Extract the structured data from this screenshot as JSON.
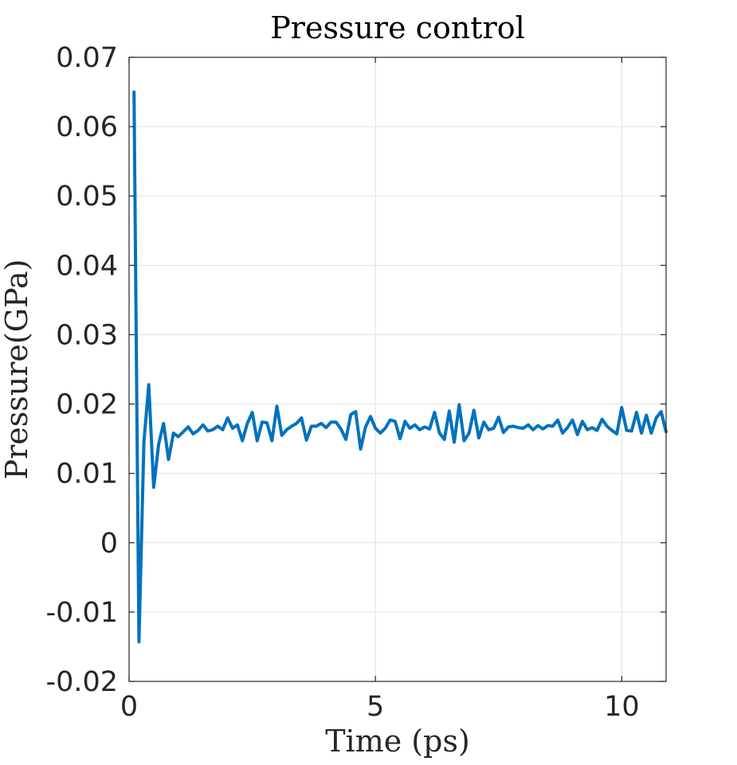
{
  "chart_data": {
    "type": "line",
    "title": "Pressure control",
    "xlabel": "Time (ps)",
    "ylabel": "Pressure(GPa)",
    "xlim": [
      0,
      10.9
    ],
    "ylim": [
      -0.02,
      0.07
    ],
    "xticks": [
      0,
      5,
      10
    ],
    "yticks": [
      -0.02,
      -0.01,
      0,
      0.01,
      0.02,
      0.03,
      0.04,
      0.05,
      0.06,
      0.07
    ],
    "xtick_labels": [
      "0",
      "5",
      "10"
    ],
    "ytick_labels": [
      "-0.02",
      "-0.01",
      "0",
      "0.01",
      "0.02",
      "0.03",
      "0.04",
      "0.05",
      "0.06",
      "0.07"
    ],
    "grid": true,
    "line_color": "#0072BD",
    "series": [
      {
        "x": [
          0.1,
          0.2,
          0.3,
          0.4,
          0.5,
          0.6,
          0.7,
          0.8,
          0.9,
          1.0,
          1.1,
          1.2,
          1.3,
          1.4,
          1.5,
          1.6,
          1.7,
          1.8,
          1.9,
          2.0,
          2.1,
          2.2,
          2.3,
          2.4,
          2.5,
          2.6,
          2.7,
          2.8,
          2.9,
          3.0,
          3.1,
          3.2,
          3.3,
          3.4,
          3.5,
          3.6,
          3.7,
          3.8,
          3.9,
          4.0,
          4.1,
          4.2,
          4.3,
          4.4,
          4.5,
          4.6,
          4.7,
          4.8,
          4.9,
          5.0,
          5.1,
          5.2,
          5.3,
          5.4,
          5.5,
          5.6,
          5.7,
          5.8,
          5.9,
          6.0,
          6.1,
          6.2,
          6.3,
          6.4,
          6.5,
          6.6,
          6.7,
          6.8,
          6.9,
          7.0,
          7.1,
          7.2,
          7.3,
          7.4,
          7.5,
          7.6,
          7.7,
          7.8,
          7.9,
          8.0,
          8.1,
          8.2,
          8.3,
          8.4,
          8.5,
          8.6,
          8.7,
          8.8,
          8.9,
          9.0,
          9.1,
          9.2,
          9.3,
          9.4,
          9.5,
          9.6,
          9.7,
          9.8,
          9.9,
          10.0,
          10.1,
          10.2,
          10.3,
          10.4,
          10.5,
          10.6,
          10.7,
          10.8,
          10.9
        ],
        "values": [
          0.065,
          -0.0143,
          0.0145,
          0.0228,
          0.008,
          0.0142,
          0.0172,
          0.012,
          0.0158,
          0.0153,
          0.016,
          0.0167,
          0.0157,
          0.0162,
          0.017,
          0.0161,
          0.0163,
          0.0168,
          0.0163,
          0.018,
          0.0165,
          0.017,
          0.0147,
          0.0172,
          0.0188,
          0.0147,
          0.0174,
          0.0173,
          0.0147,
          0.0197,
          0.0155,
          0.0163,
          0.0168,
          0.0172,
          0.018,
          0.0148,
          0.0168,
          0.0168,
          0.0172,
          0.0166,
          0.0174,
          0.0174,
          0.0164,
          0.0149,
          0.0185,
          0.0189,
          0.0135,
          0.0167,
          0.0182,
          0.0165,
          0.0158,
          0.0165,
          0.0177,
          0.0175,
          0.015,
          0.0175,
          0.0165,
          0.017,
          0.0163,
          0.0167,
          0.0164,
          0.0188,
          0.0158,
          0.0149,
          0.019,
          0.0145,
          0.0199,
          0.0147,
          0.0158,
          0.0191,
          0.0151,
          0.0174,
          0.0163,
          0.0165,
          0.0181,
          0.0159,
          0.0167,
          0.0168,
          0.0166,
          0.0165,
          0.017,
          0.0163,
          0.0169,
          0.0164,
          0.0169,
          0.0168,
          0.0177,
          0.0158,
          0.0166,
          0.0177,
          0.0156,
          0.0175,
          0.0163,
          0.0166,
          0.0162,
          0.0178,
          0.0168,
          0.0162,
          0.0157,
          0.0195,
          0.0162,
          0.0161,
          0.0188,
          0.0158,
          0.0184,
          0.0158,
          0.018,
          0.0189,
          0.016
        ]
      }
    ]
  }
}
